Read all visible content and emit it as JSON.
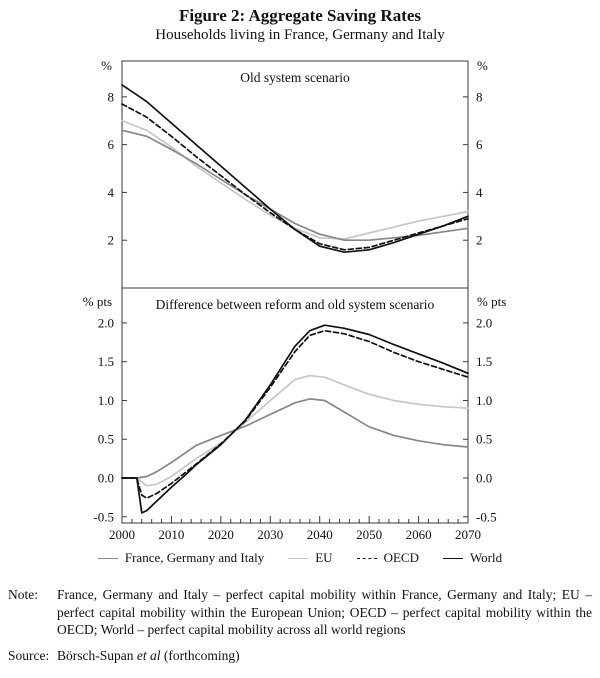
{
  "header": {
    "title": "Figure 2: Aggregate Saving Rates",
    "subtitle": "Households living in France, Germany and Italy"
  },
  "chart_data": {
    "type": "line",
    "title": "Figure 2: Aggregate Saving Rates",
    "subtitle": "Households living in France, Germany and Italy",
    "grid": false,
    "legend_position": "bottom",
    "x_range": [
      2000,
      2070
    ],
    "x_minor_step": 2,
    "x_major_ticks": [
      {
        "v": 2000,
        "label": "2000"
      },
      {
        "v": 2010,
        "label": "2010"
      },
      {
        "v": 2020,
        "label": "2020"
      },
      {
        "v": 2030,
        "label": "2030"
      },
      {
        "v": 2040,
        "label": "2040"
      },
      {
        "v": 2050,
        "label": "2050"
      },
      {
        "v": 2060,
        "label": "2060"
      },
      {
        "v": 2070,
        "label": "2070"
      }
    ],
    "panels": [
      {
        "title": "Old system scenario",
        "unit_label": "%",
        "ylim": [
          0,
          9.5
        ],
        "yticks": [
          {
            "v": 2,
            "label": "2"
          },
          {
            "v": 4,
            "label": "4"
          },
          {
            "v": 6,
            "label": "6"
          },
          {
            "v": 8,
            "label": "8"
          }
        ],
        "series": [
          {
            "id": "eu",
            "name": "EU",
            "color": "#c6c6c6",
            "dash": "solid",
            "x": [
              2000,
              2005,
              2010,
              2015,
              2020,
              2025,
              2030,
              2035,
              2040,
              2045,
              2050,
              2055,
              2060,
              2065,
              2070
            ],
            "y": [
              7.0,
              6.6,
              5.9,
              5.1,
              4.4,
              3.7,
              3.05,
              2.5,
              2.1,
              2.05,
              2.3,
              2.55,
              2.8,
              3.0,
              3.2
            ]
          },
          {
            "id": "fgi",
            "name": "France, Germany and Italy",
            "color": "#878787",
            "dash": "solid",
            "x": [
              2000,
              2005,
              2010,
              2015,
              2020,
              2025,
              2030,
              2035,
              2040,
              2045,
              2050,
              2055,
              2060,
              2065,
              2070
            ],
            "y": [
              6.6,
              6.35,
              5.8,
              5.2,
              4.55,
              3.9,
              3.3,
              2.7,
              2.25,
              2.0,
              2.0,
              2.1,
              2.2,
              2.35,
              2.5
            ]
          },
          {
            "id": "oecd",
            "name": "OECD",
            "color": "#111111",
            "dash": "dashed",
            "x": [
              2000,
              2005,
              2010,
              2015,
              2020,
              2025,
              2030,
              2035,
              2040,
              2045,
              2050,
              2055,
              2060,
              2065,
              2070
            ],
            "y": [
              7.7,
              7.15,
              6.35,
              5.5,
              4.7,
              3.9,
              3.15,
              2.45,
              1.85,
              1.6,
              1.7,
              2.0,
              2.3,
              2.6,
              2.9
            ]
          },
          {
            "id": "world",
            "name": "World",
            "color": "#111111",
            "dash": "solid",
            "x": [
              2000,
              2005,
              2010,
              2015,
              2020,
              2025,
              2030,
              2035,
              2040,
              2045,
              2050,
              2055,
              2060,
              2065,
              2070
            ],
            "y": [
              8.5,
              7.8,
              6.9,
              6.0,
              5.1,
              4.2,
              3.3,
              2.45,
              1.75,
              1.5,
              1.6,
              1.9,
              2.25,
              2.6,
              3.0
            ]
          }
        ]
      },
      {
        "title": "Difference between reform and old system scenario",
        "unit_label": "% pts",
        "ylim": [
          -0.58,
          2.45
        ],
        "yticks": [
          {
            "v": -0.5,
            "label": "-0.5"
          },
          {
            "v": 0,
            "label": "0.0"
          },
          {
            "v": 0.5,
            "label": "0.5"
          },
          {
            "v": 1,
            "label": "1.0"
          },
          {
            "v": 1.5,
            "label": "1.5"
          },
          {
            "v": 2,
            "label": "2.0"
          }
        ],
        "series": [
          {
            "id": "eu",
            "name": "EU",
            "color": "#c6c6c6",
            "dash": "solid",
            "x": [
              2000,
              2003,
              2005,
              2007,
              2010,
              2015,
              2020,
              2025,
              2030,
              2035,
              2038,
              2041,
              2045,
              2050,
              2055,
              2060,
              2065,
              2070
            ],
            "y": [
              0.0,
              0.0,
              -0.1,
              -0.08,
              0.02,
              0.25,
              0.45,
              0.72,
              1.0,
              1.27,
              1.32,
              1.3,
              1.2,
              1.08,
              1.0,
              0.95,
              0.92,
              0.9
            ]
          },
          {
            "id": "fgi",
            "name": "France, Germany and Italy",
            "color": "#878787",
            "dash": "solid",
            "x": [
              2000,
              2003,
              2005,
              2007,
              2010,
              2015,
              2020,
              2025,
              2030,
              2035,
              2038,
              2041,
              2045,
              2050,
              2055,
              2060,
              2065,
              2070
            ],
            "y": [
              0.0,
              0.0,
              0.02,
              0.08,
              0.2,
              0.42,
              0.55,
              0.67,
              0.82,
              0.97,
              1.02,
              1.0,
              0.85,
              0.66,
              0.55,
              0.48,
              0.43,
              0.4
            ]
          },
          {
            "id": "oecd",
            "name": "OECD",
            "color": "#111111",
            "dash": "dashed",
            "x": [
              2000,
              2003,
              2004,
              2005,
              2007,
              2010,
              2013,
              2015,
              2020,
              2025,
              2030,
              2035,
              2038,
              2041,
              2045,
              2050,
              2055,
              2060,
              2065,
              2070
            ],
            "y": [
              0.0,
              0.0,
              -0.22,
              -0.26,
              -0.2,
              -0.07,
              0.08,
              0.18,
              0.44,
              0.74,
              1.17,
              1.63,
              1.84,
              1.9,
              1.86,
              1.76,
              1.62,
              1.5,
              1.4,
              1.3
            ]
          },
          {
            "id": "world",
            "name": "World",
            "color": "#111111",
            "dash": "solid",
            "x": [
              2000,
              2003,
              2004,
              2005,
              2007,
              2010,
              2013,
              2015,
              2020,
              2025,
              2030,
              2035,
              2038,
              2041,
              2045,
              2050,
              2055,
              2060,
              2065,
              2070
            ],
            "y": [
              0.0,
              0.0,
              -0.45,
              -0.42,
              -0.3,
              -0.12,
              0.05,
              0.17,
              0.43,
              0.75,
              1.2,
              1.7,
              1.9,
              1.97,
              1.93,
              1.85,
              1.72,
              1.6,
              1.48,
              1.35
            ]
          }
        ]
      }
    ],
    "legend": [
      {
        "label": "France, Germany and Italy",
        "color": "#878787",
        "dash": "solid"
      },
      {
        "label": "EU",
        "color": "#c6c6c6",
        "dash": "solid"
      },
      {
        "label": "OECD",
        "color": "#111111",
        "dash": "dashed"
      },
      {
        "label": "World",
        "color": "#111111",
        "dash": "solid"
      }
    ]
  },
  "notes": {
    "label": "Note:",
    "body": "France, Germany and Italy – perfect capital mobility within France, Germany and Italy; EU – perfect capital mobility within the European Union; OECD – perfect capital mobility within the OECD; World – perfect capital mobility across all world regions"
  },
  "source": {
    "label": "Source:",
    "pre": "Börsch-Supan ",
    "italic": "et al",
    "post": " (forthcoming)"
  }
}
